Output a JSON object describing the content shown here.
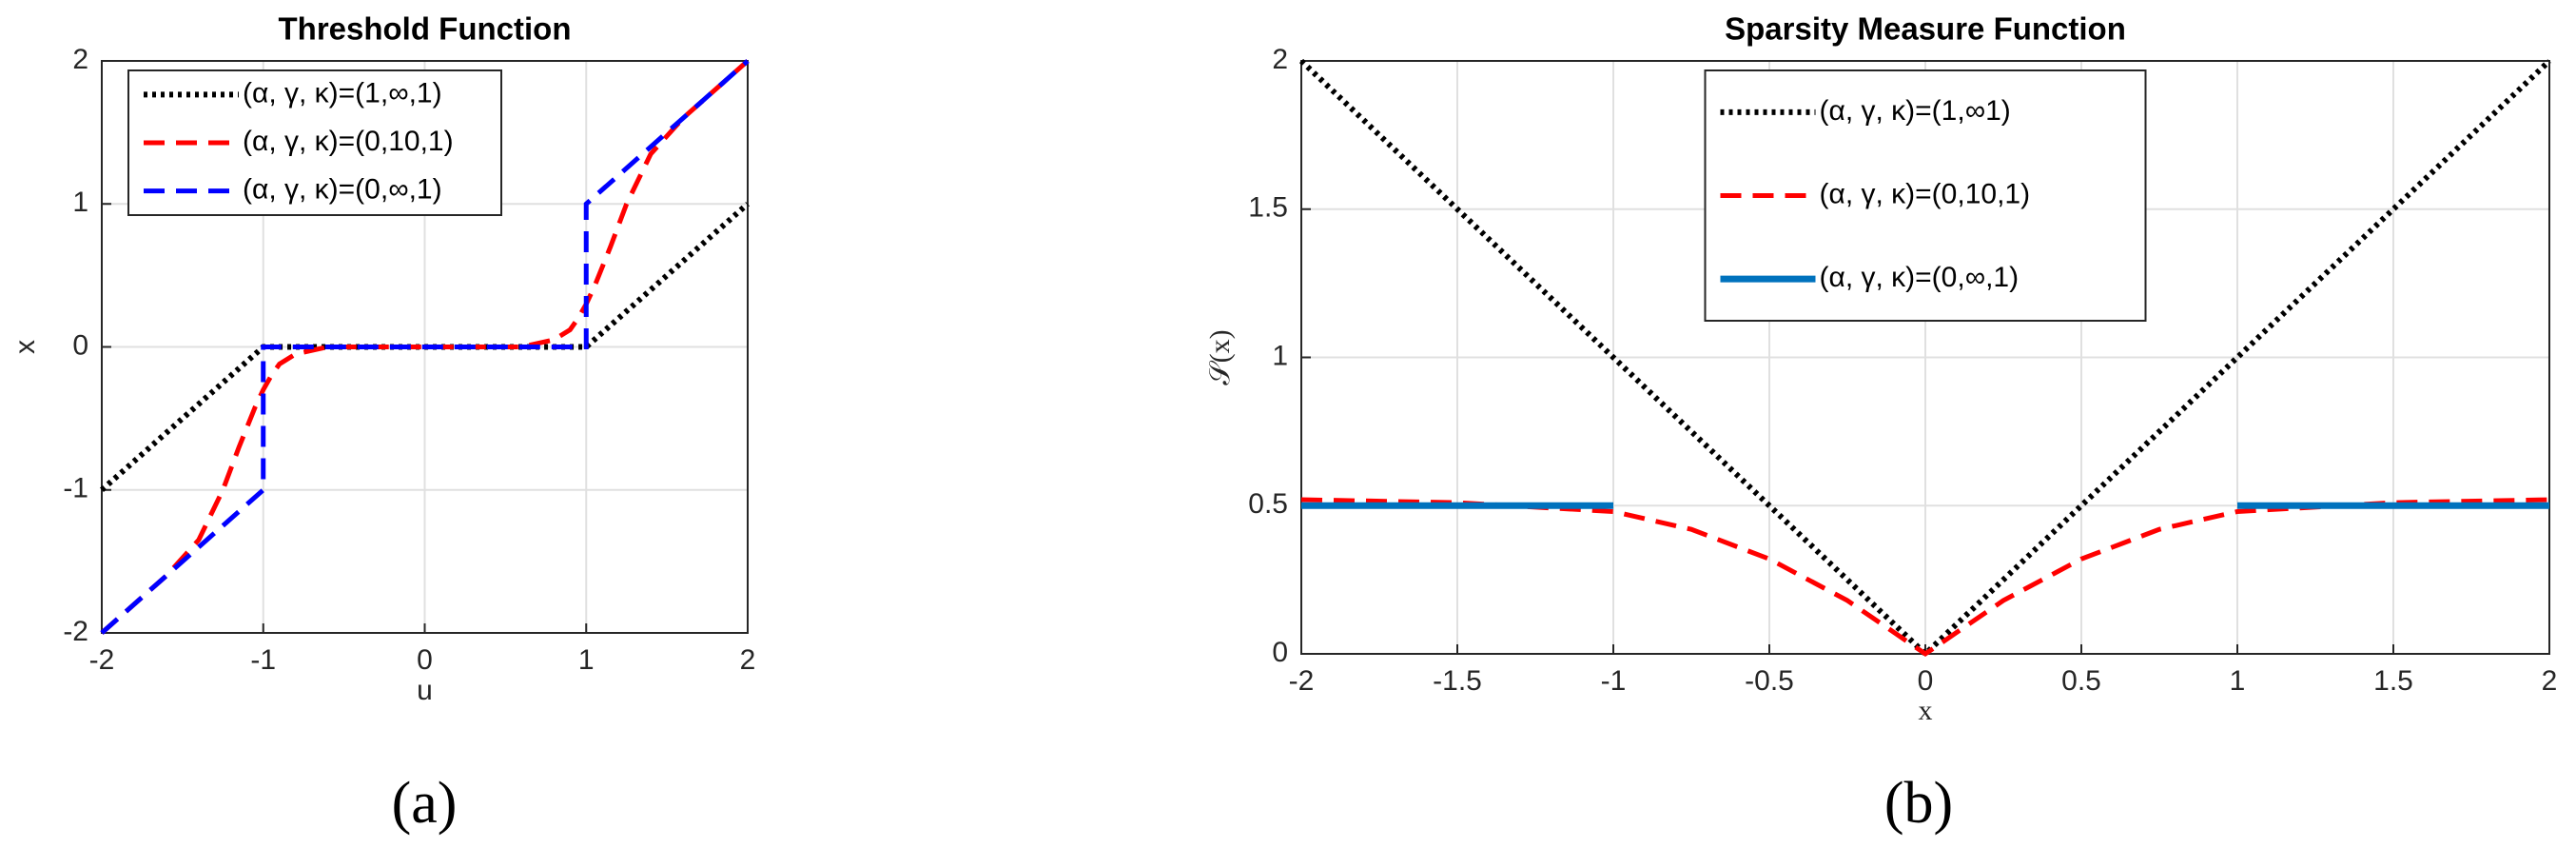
{
  "chart_data": [
    {
      "type": "line",
      "title": "Threshold Function",
      "x_label": "u",
      "y_label": "x",
      "caption": "(a)",
      "xlim": [
        -2,
        2
      ],
      "ylim": [
        -2,
        2
      ],
      "xticks": [
        -2,
        -1,
        0,
        1,
        2
      ],
      "yticks": [
        -2,
        -1,
        0,
        1,
        2
      ],
      "grid": true,
      "legend": "upper left",
      "series": [
        {
          "name": "(α, γ, κ)=(1,∞,1)",
          "color": "#000000",
          "dash": "dotted",
          "x": [
            -2,
            -1,
            1,
            2
          ],
          "values": [
            -1,
            0,
            0,
            1
          ]
        },
        {
          "name": "(α, γ, κ)=(0,10,1)",
          "color": "#ff0000",
          "dash": "dashed",
          "x": [
            -2,
            -1.6,
            -1.4,
            -1.25,
            -1.15,
            -1.05,
            -1,
            -0.95,
            -0.9,
            -0.8,
            -0.6,
            -0.4,
            0,
            0.4,
            0.6,
            0.8,
            0.9,
            0.95,
            1,
            1.05,
            1.15,
            1.25,
            1.4,
            1.6,
            2
          ],
          "values": [
            -2,
            -1.6,
            -1.35,
            -1.0,
            -0.7,
            -0.42,
            -0.3,
            -0.2,
            -0.12,
            -0.05,
            0,
            0,
            0,
            0,
            0,
            0.05,
            0.12,
            0.2,
            0.3,
            0.42,
            0.7,
            1.0,
            1.35,
            1.6,
            2
          ]
        },
        {
          "name": "(α, γ, κ)=(0,∞,1)",
          "color": "#0000ff",
          "dash": "dashed",
          "x": [
            -2,
            -1,
            -1,
            1,
            1,
            2
          ],
          "values": [
            -2,
            -1,
            0,
            0,
            1,
            2
          ]
        }
      ]
    },
    {
      "type": "line",
      "title": "Sparsity Measure Function",
      "x_label": "x",
      "y_label": "𝒮(x)",
      "caption": "(b)",
      "xlim": [
        -2,
        2
      ],
      "ylim": [
        0,
        2
      ],
      "xticks": [
        -2,
        -1.5,
        -1,
        -0.5,
        0,
        0.5,
        1,
        1.5,
        2
      ],
      "yticks": [
        0,
        0.5,
        1,
        1.5,
        2
      ],
      "grid": true,
      "legend": "upper center",
      "series": [
        {
          "name": "(α, γ, κ)=(1,∞1)",
          "color": "#000000",
          "dash": "dotted",
          "x": [
            -2,
            0,
            2
          ],
          "values": [
            2,
            0,
            2
          ]
        },
        {
          "name": "(α, γ, κ)=(0,10,1)",
          "color": "#ff0000",
          "dash": "dashed",
          "x": [
            -2,
            -1.5,
            -1,
            -0.75,
            -0.5,
            -0.25,
            0,
            0.25,
            0.5,
            0.75,
            1,
            1.5,
            2
          ],
          "values": [
            0.52,
            0.51,
            0.48,
            0.42,
            0.32,
            0.18,
            0,
            0.18,
            0.32,
            0.42,
            0.48,
            0.51,
            0.52
          ]
        },
        {
          "name": "(α, γ, κ)=(0,∞,1)",
          "color": "#0072bd",
          "dash": "solid",
          "x": [
            -2,
            -1,
            0,
            1,
            2
          ],
          "values": [
            0.5,
            0.5,
            null,
            0.5,
            0.5
          ]
        }
      ]
    }
  ]
}
